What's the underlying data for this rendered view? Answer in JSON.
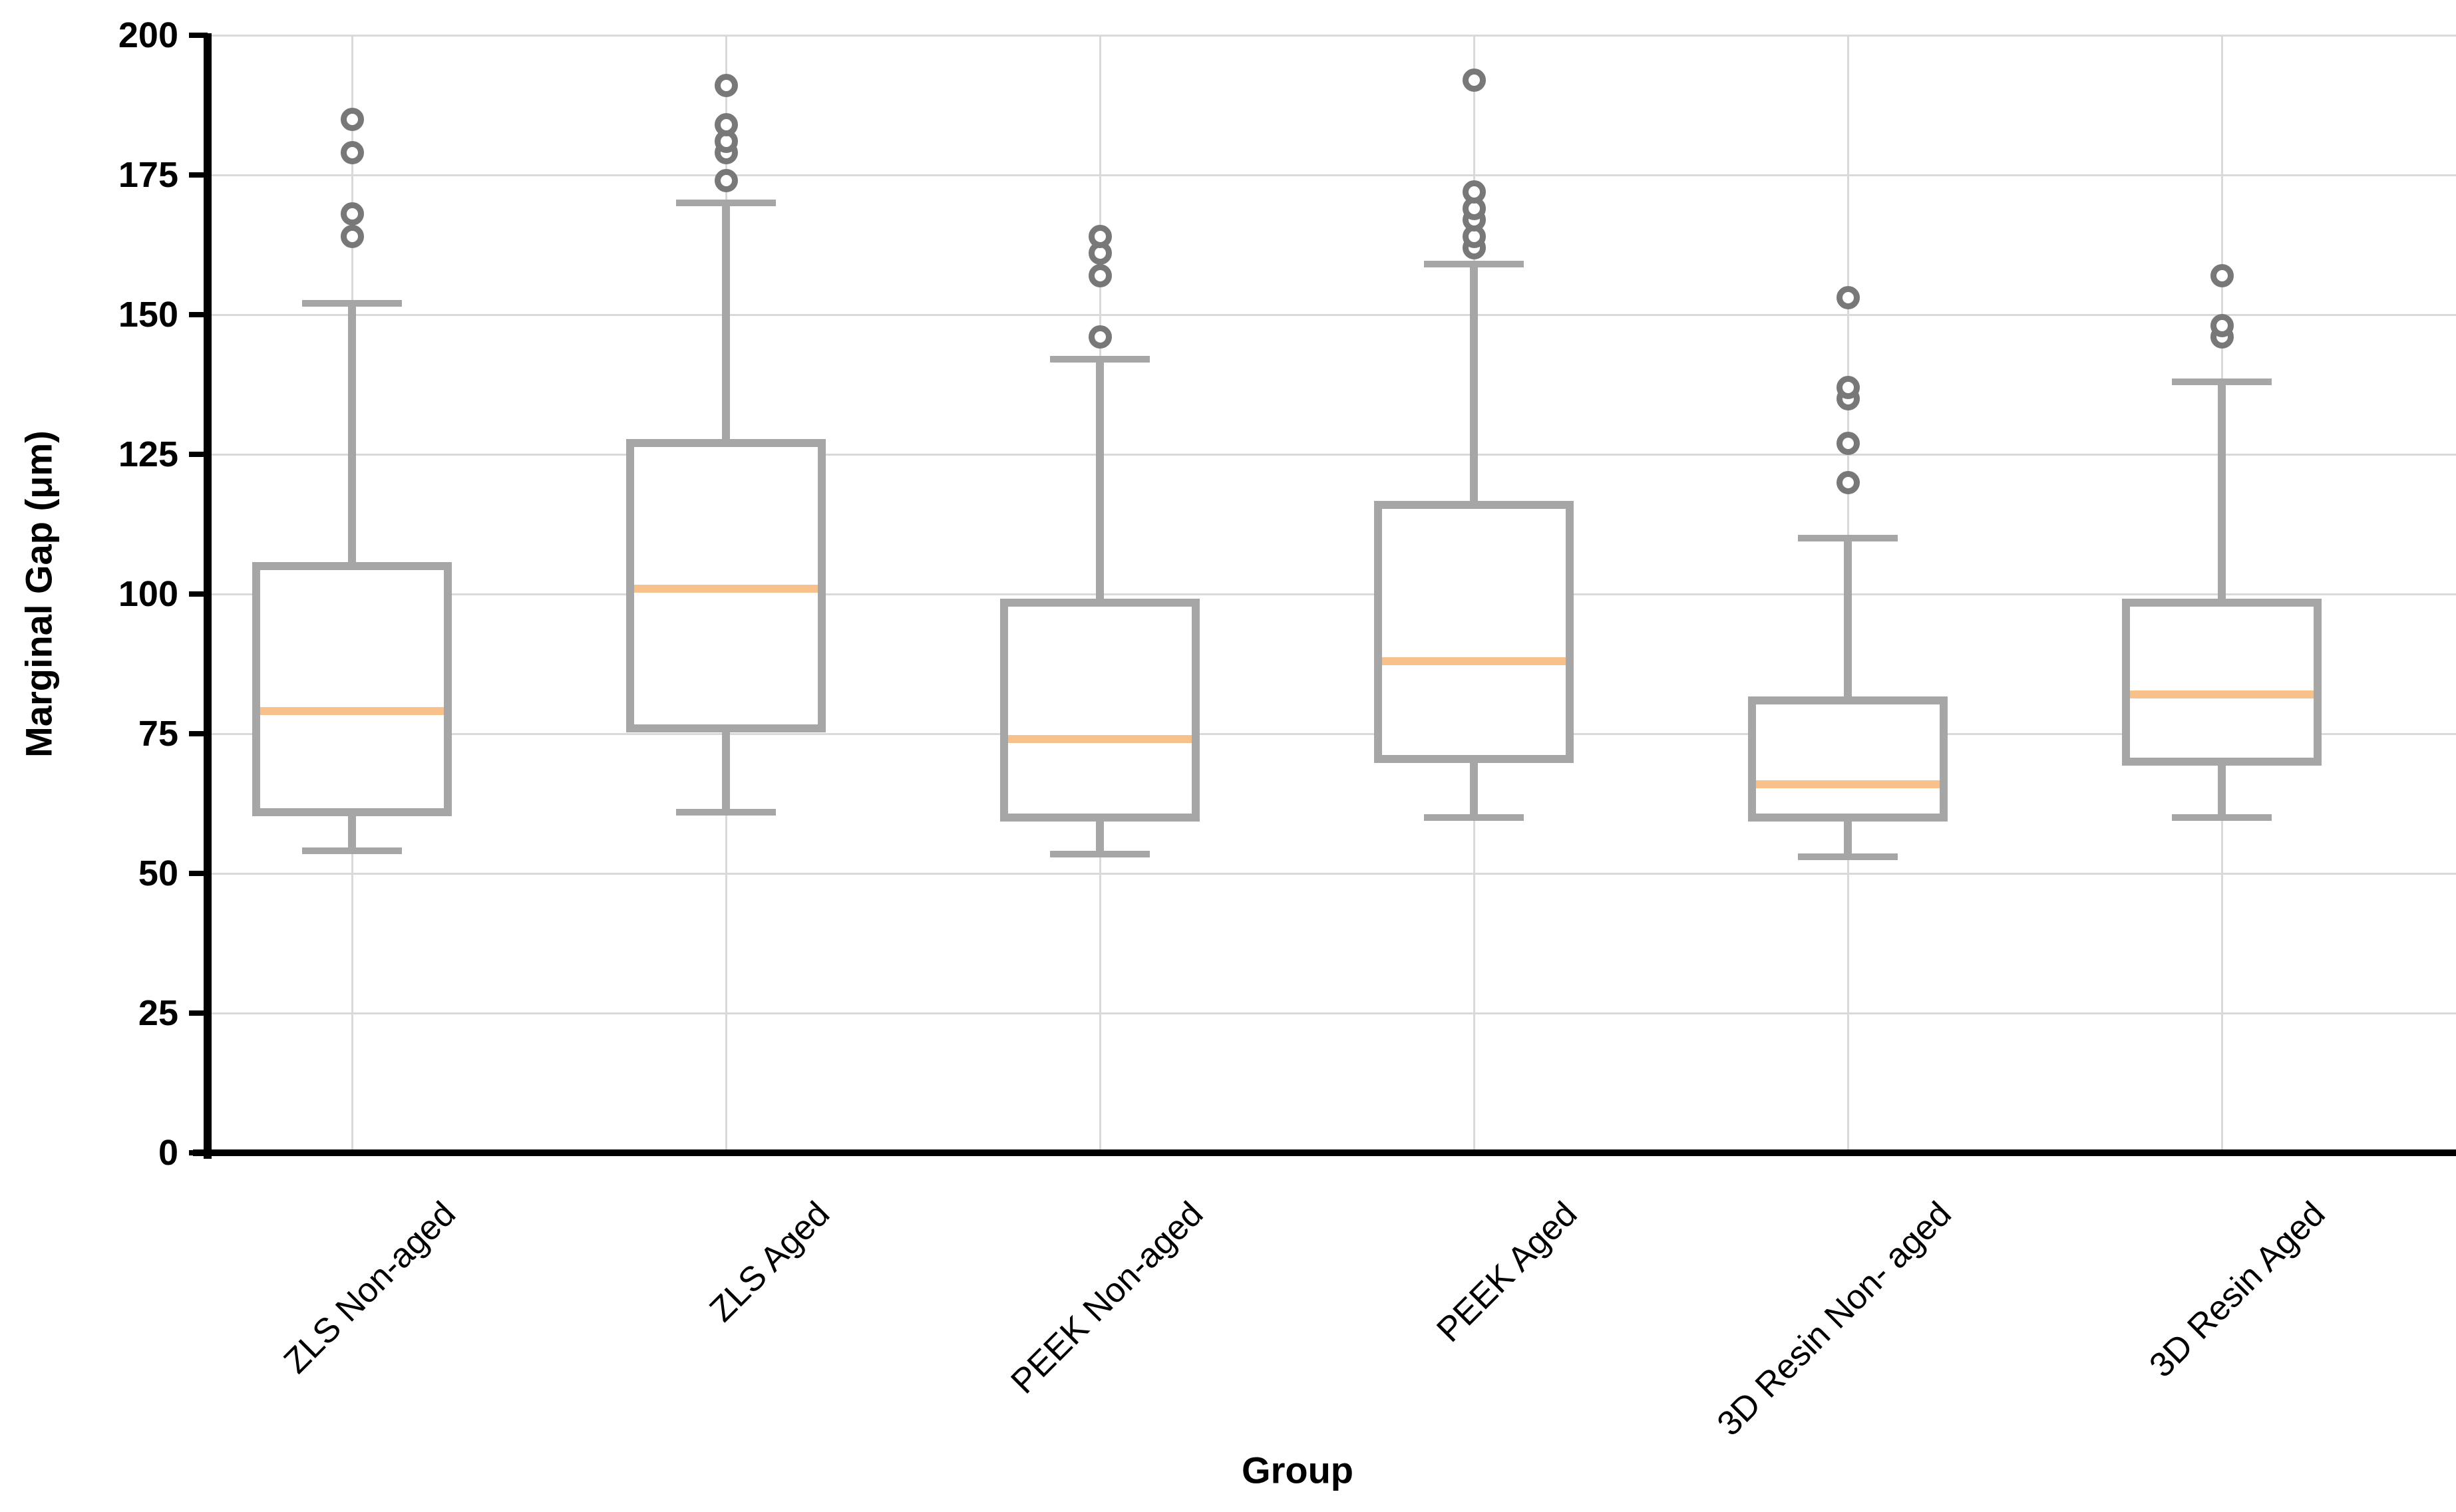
{
  "chart_data": {
    "type": "box",
    "title": "",
    "xlabel": "Group",
    "ylabel": "Marginal Gap (μm)",
    "ylim": [
      0,
      200
    ],
    "yticks": [
      0,
      25,
      50,
      75,
      100,
      125,
      150,
      175,
      200
    ],
    "grid": true,
    "legend": "none",
    "groups": [
      {
        "label": "ZLS Non-aged",
        "whisker_low": 54,
        "q1": 61,
        "median": 79,
        "q3": 105,
        "whisker_high": 152,
        "outliers": [
          164,
          168,
          179,
          185
        ]
      },
      {
        "label": "ZLS Aged",
        "whisker_low": 61,
        "q1": 76,
        "median": 101,
        "q3": 127,
        "whisker_high": 170,
        "outliers": [
          174,
          179,
          181,
          184,
          191
        ]
      },
      {
        "label": "PEEK Non-aged",
        "whisker_low": 53.5,
        "q1": 60,
        "median": 74,
        "q3": 98.5,
        "whisker_high": 142,
        "outliers": [
          146,
          157,
          161,
          164
        ]
      },
      {
        "label": "PEEK Aged",
        "whisker_low": 60,
        "q1": 70.5,
        "median": 88,
        "q3": 116,
        "whisker_high": 159,
        "outliers": [
          162,
          164,
          167,
          169,
          172,
          192
        ]
      },
      {
        "label": "3D Resin Non- aged",
        "whisker_low": 53,
        "q1": 60,
        "median": 66,
        "q3": 81,
        "whisker_high": 110,
        "outliers": [
          120,
          127,
          135,
          137,
          153
        ]
      },
      {
        "label": "3D Resin Aged",
        "whisker_low": 60,
        "q1": 70,
        "median": 82,
        "q3": 98.5,
        "whisker_high": 138,
        "outliers": [
          146,
          148,
          157
        ]
      }
    ],
    "colors": {
      "box_edge": "#a6a6a6",
      "median": "#f8c18c",
      "outlier_edge": "#787878",
      "gridline": "#d9d9d9",
      "axis": "#000000",
      "background": "#ffffff"
    }
  }
}
